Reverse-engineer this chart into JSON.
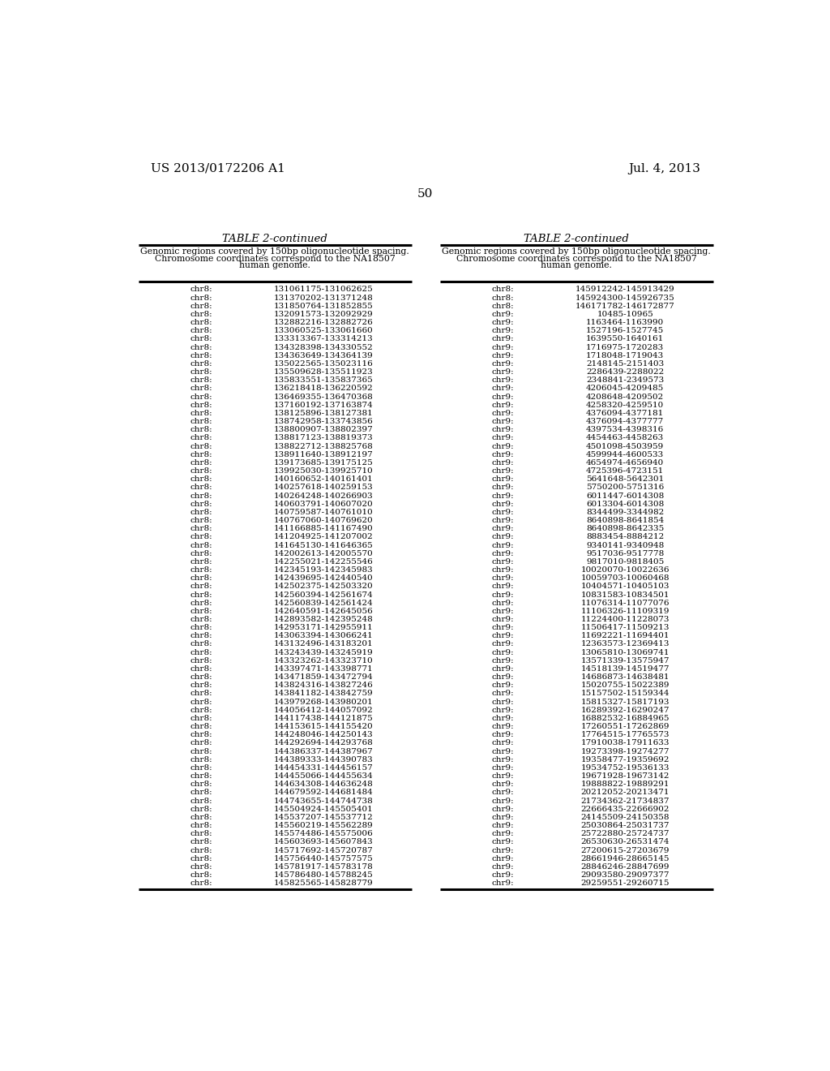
{
  "header_left": "US 2013/0172206 A1",
  "header_right": "Jul. 4, 2013",
  "page_number": "50",
  "table_title": "TABLE 2-continued",
  "table_subtitle_line1": "Genomic regions covered by 150bp oligonucleotide spacing.",
  "table_subtitle_line2": "Chromosome coordinates correspond to the NA18507",
  "table_subtitle_line3": "human genome.",
  "left_col1_data": [
    [
      "chr8:",
      "131061175-131062625"
    ],
    [
      "chr8:",
      "131370202-131371248"
    ],
    [
      "chr8:",
      "131850764-131852855"
    ],
    [
      "chr8:",
      "132091573-132092929"
    ],
    [
      "chr8:",
      "132882216-132882726"
    ],
    [
      "chr8:",
      "133060525-133061660"
    ],
    [
      "chr8:",
      "133313367-133314213"
    ],
    [
      "chr8:",
      "134328398-134330552"
    ],
    [
      "chr8:",
      "134363649-134364139"
    ],
    [
      "chr8:",
      "135022565-135023116"
    ],
    [
      "chr8:",
      "135509628-135511923"
    ],
    [
      "chr8:",
      "135833551-135837365"
    ],
    [
      "chr8:",
      "136218418-136220592"
    ],
    [
      "chr8:",
      "136469355-136470368"
    ],
    [
      "chr8:",
      "137160192-137163874"
    ],
    [
      "chr8:",
      "138125896-138127381"
    ],
    [
      "chr8:",
      "138742958-133743856"
    ],
    [
      "chr8:",
      "138800907-138802397"
    ],
    [
      "chr8:",
      "138817123-138819373"
    ],
    [
      "chr8:",
      "138822712-138825768"
    ],
    [
      "chr8:",
      "138911640-138912197"
    ],
    [
      "chr8:",
      "139173685-139175125"
    ],
    [
      "chr8:",
      "139925030-139925710"
    ],
    [
      "chr8:",
      "140160652-140161401"
    ],
    [
      "chr8:",
      "140257618-140259153"
    ],
    [
      "chr8:",
      "140264248-140266903"
    ],
    [
      "chr8:",
      "140603791-140607020"
    ],
    [
      "chr8:",
      "140759587-140761010"
    ],
    [
      "chr8:",
      "140767060-140769620"
    ],
    [
      "chr8:",
      "141166885-141167490"
    ],
    [
      "chr8:",
      "141204925-141207002"
    ],
    [
      "chr8:",
      "141645130-141646365"
    ],
    [
      "chr8:",
      "142002613-142005570"
    ],
    [
      "chr8:",
      "142255021-142255546"
    ],
    [
      "chr8:",
      "142345193-142345983"
    ],
    [
      "chr8:",
      "142439695-142440540"
    ],
    [
      "chr8:",
      "142502375-142503320"
    ],
    [
      "chr8:",
      "142560394-142561674"
    ],
    [
      "chr8:",
      "142560839-142561424"
    ],
    [
      "chr8:",
      "142640591-142645056"
    ],
    [
      "chr8:",
      "142893582-142395248"
    ],
    [
      "chr8:",
      "142953171-142955911"
    ],
    [
      "chr8:",
      "143063394-143066241"
    ],
    [
      "chr8:",
      "143132496-143183201"
    ],
    [
      "chr8:",
      "143243439-143245919"
    ],
    [
      "chr8:",
      "143323262-143323710"
    ],
    [
      "chr8:",
      "143397471-143398771"
    ],
    [
      "chr8:",
      "143471859-143472794"
    ],
    [
      "chr8:",
      "143824316-143827246"
    ],
    [
      "chr8:",
      "143841182-143842759"
    ],
    [
      "chr8:",
      "143979268-143980201"
    ],
    [
      "chr8:",
      "144056412-144057092"
    ],
    [
      "chr8:",
      "144117438-144121875"
    ],
    [
      "chr8:",
      "144153615-144155420"
    ],
    [
      "chr8:",
      "144248046-144250143"
    ],
    [
      "chr8:",
      "144292694-144293768"
    ],
    [
      "chr8:",
      "144386337-144387967"
    ],
    [
      "chr8:",
      "144389333-144390783"
    ],
    [
      "chr8:",
      "144454331-144456157"
    ],
    [
      "chr8:",
      "144455066-144455634"
    ],
    [
      "chr8:",
      "144634308-144636248"
    ],
    [
      "chr8:",
      "144679592-144681484"
    ],
    [
      "chr8:",
      "144743655-144744738"
    ],
    [
      "chr8:",
      "145504924-145505401"
    ],
    [
      "chr8:",
      "145537207-145537712"
    ],
    [
      "chr8:",
      "145560219-145562289"
    ],
    [
      "chr8:",
      "145574486-145575006"
    ],
    [
      "chr8:",
      "145603693-145607843"
    ],
    [
      "chr8:",
      "145717692-145720787"
    ],
    [
      "chr8:",
      "145756440-145757575"
    ],
    [
      "chr8:",
      "145781917-145783178"
    ],
    [
      "chr8:",
      "145786480-145788245"
    ],
    [
      "chr8:",
      "145825565-145828779"
    ]
  ],
  "right_col1_data": [
    [
      "chr8:",
      "145912242-145913429"
    ],
    [
      "chr8:",
      "145924300-145926735"
    ],
    [
      "chr8:",
      "146171782-146172877"
    ],
    [
      "chr9:",
      "10485-10965"
    ],
    [
      "chr9:",
      "1163464-1163990"
    ],
    [
      "chr9:",
      "1527196-1527745"
    ],
    [
      "chr9:",
      "1639550-1640161"
    ],
    [
      "chr9:",
      "1716975-1720283"
    ],
    [
      "chr9:",
      "1718048-1719043"
    ],
    [
      "chr9:",
      "2148145-2151403"
    ],
    [
      "chr9:",
      "2286439-2288022"
    ],
    [
      "chr9:",
      "2348841-2349573"
    ],
    [
      "chr9:",
      "4206045-4209485"
    ],
    [
      "chr9:",
      "4208648-4209502"
    ],
    [
      "chr9:",
      "4258320-4259510"
    ],
    [
      "chr9:",
      "4376094-4377181"
    ],
    [
      "chr9:",
      "4376094-4377777"
    ],
    [
      "chr9:",
      "4397534-4398316"
    ],
    [
      "chr9:",
      "4454463-4458263"
    ],
    [
      "chr9:",
      "4501098-4503959"
    ],
    [
      "chr9:",
      "4599944-4600533"
    ],
    [
      "chr9:",
      "4654974-4656940"
    ],
    [
      "chr9:",
      "4725396-4723151"
    ],
    [
      "chr9:",
      "5641648-5642301"
    ],
    [
      "chr9:",
      "5750200-5751316"
    ],
    [
      "chr9:",
      "6011447-6014308"
    ],
    [
      "chr9:",
      "6013304-6014308"
    ],
    [
      "chr9:",
      "8344499-3344982"
    ],
    [
      "chr9:",
      "8640898-8641854"
    ],
    [
      "chr9:",
      "8640898-8642335"
    ],
    [
      "chr9:",
      "8883454-8884212"
    ],
    [
      "chr9:",
      "9340141-9340948"
    ],
    [
      "chr9:",
      "9517036-9517778"
    ],
    [
      "chr9:",
      "9817010-9818405"
    ],
    [
      "chr9:",
      "10020070-10022636"
    ],
    [
      "chr9:",
      "10059703-10060468"
    ],
    [
      "chr9:",
      "10404571-10405103"
    ],
    [
      "chr9:",
      "10831583-10834501"
    ],
    [
      "chr9:",
      "11076314-11077076"
    ],
    [
      "chr9:",
      "11106326-11109319"
    ],
    [
      "chr9:",
      "11224400-11228073"
    ],
    [
      "chr9:",
      "11506417-11509213"
    ],
    [
      "chr9:",
      "11692221-11694401"
    ],
    [
      "chr9:",
      "12363573-12369413"
    ],
    [
      "chr9:",
      "13065810-13069741"
    ],
    [
      "chr9:",
      "13571339-13575947"
    ],
    [
      "chr9:",
      "14518139-14519477"
    ],
    [
      "chr9:",
      "14686873-14638481"
    ],
    [
      "chr9:",
      "15020755-15022389"
    ],
    [
      "chr9:",
      "15157502-15159344"
    ],
    [
      "chr9:",
      "15815327-15817193"
    ],
    [
      "chr9:",
      "16289392-16290247"
    ],
    [
      "chr9:",
      "16882532-16884965"
    ],
    [
      "chr9:",
      "17260551-17262869"
    ],
    [
      "chr9:",
      "17764515-17765573"
    ],
    [
      "chr9:",
      "17910038-17911633"
    ],
    [
      "chr9:",
      "19273398-19274277"
    ],
    [
      "chr9:",
      "19358477-19359692"
    ],
    [
      "chr9:",
      "19534752-19536133"
    ],
    [
      "chr9:",
      "19671928-19673142"
    ],
    [
      "chr9:",
      "19888822-19889291"
    ],
    [
      "chr9:",
      "20212052-20213471"
    ],
    [
      "chr9:",
      "21734362-21734837"
    ],
    [
      "chr9:",
      "22666435-22666902"
    ],
    [
      "chr9:",
      "24145509-24150358"
    ],
    [
      "chr9:",
      "25030864-25031737"
    ],
    [
      "chr9:",
      "25722880-25724737"
    ],
    [
      "chr9:",
      "26530630-26531474"
    ],
    [
      "chr9:",
      "27200615-27203679"
    ],
    [
      "chr9:",
      "28661946-28665145"
    ],
    [
      "chr9:",
      "28846246-28847699"
    ],
    [
      "chr9:",
      "29093580-29097377"
    ],
    [
      "chr9:",
      "29259551-29260715"
    ]
  ],
  "bg_color": "#ffffff",
  "text_color": "#000000",
  "font_size_header": 11.0,
  "font_size_table": 7.5,
  "font_size_subtitle": 7.8,
  "font_size_title": 9.5,
  "font_size_page": 11.0
}
